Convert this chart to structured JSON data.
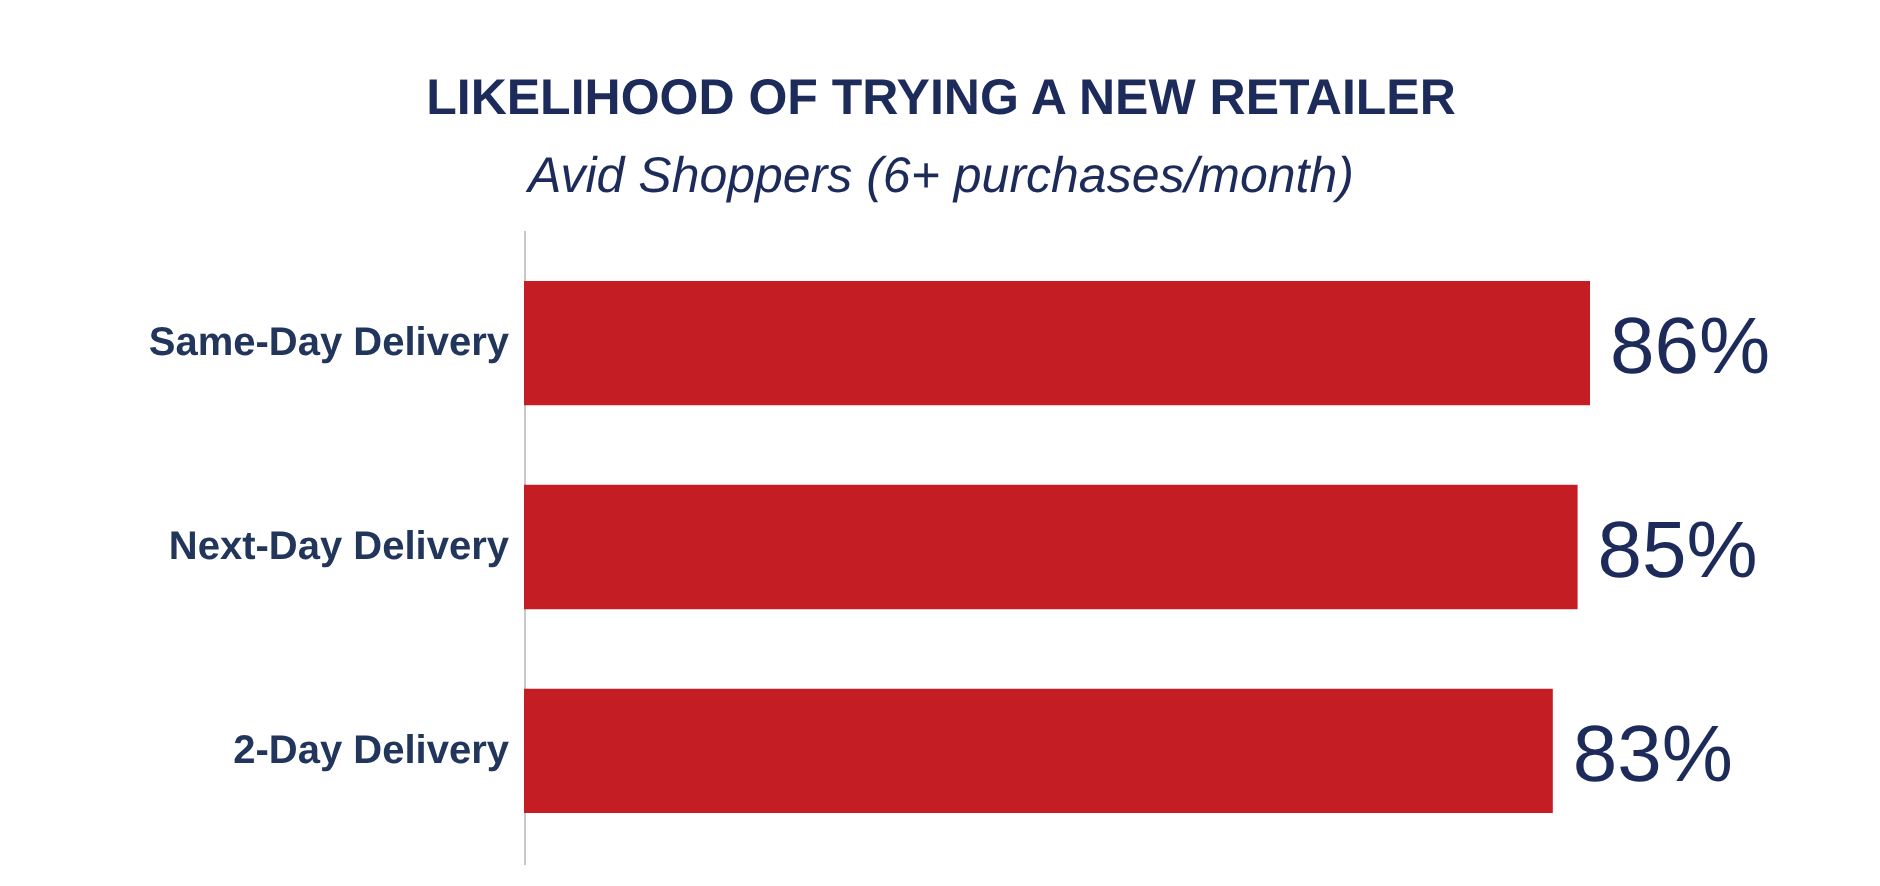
{
  "chart_data": {
    "type": "bar",
    "orientation": "horizontal",
    "title": "LIKELIHOOD OF TRYING A NEW RETAILER",
    "subtitle": "Avid Shoppers (6+ purchases/month)",
    "categories": [
      "Same-Day Delivery",
      "Next-Day Delivery",
      "2-Day Delivery"
    ],
    "values": [
      86,
      85,
      83
    ],
    "color": "#c41e24",
    "value_labels": [
      "86%",
      "85%",
      "83%"
    ]
  }
}
